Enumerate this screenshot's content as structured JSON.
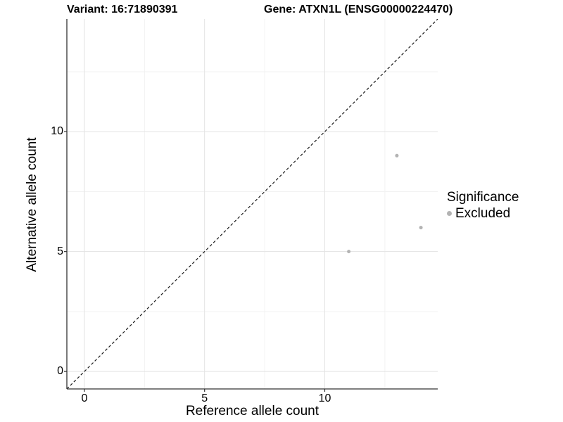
{
  "figure": {
    "title_left": "Variant: 16:71890391",
    "title_right": "Gene: ATXN1L (ENSG00000224470)"
  },
  "chart_data": {
    "type": "scatter",
    "title": "Variant: 16:71890391   Gene: ATXN1L (ENSG00000224470)",
    "xlabel": "Reference allele count",
    "ylabel": "Alternative allele count",
    "xlim": [
      -0.73,
      14.7
    ],
    "ylim": [
      -0.73,
      14.7
    ],
    "xticks": [
      0,
      5,
      10
    ],
    "yticks": [
      0,
      5,
      10
    ],
    "minor_gridlines_x": [
      2.5,
      7.5,
      12.5
    ],
    "minor_gridlines_y": [
      2.5,
      7.5,
      12.5
    ],
    "grid": true,
    "identity_line": {
      "style": "dashed",
      "equation": "y = x"
    },
    "series": [
      {
        "name": "Excluded",
        "color": "#b3b3b3",
        "points": [
          {
            "x": 11,
            "y": 5
          },
          {
            "x": 13,
            "y": 9
          },
          {
            "x": 14,
            "y": 6
          }
        ]
      }
    ],
    "legend": {
      "title": "Significance",
      "position": "right",
      "entries": [
        {
          "label": "Excluded",
          "color": "#b3b3b3"
        }
      ]
    }
  },
  "colors": {
    "point": "#b3b3b3",
    "axis_line": "#333333",
    "grid_major": "#e3e3e3",
    "grid_minor": "#f1f1f1",
    "identity_line": "#1a1a1a",
    "text": "#000000"
  }
}
